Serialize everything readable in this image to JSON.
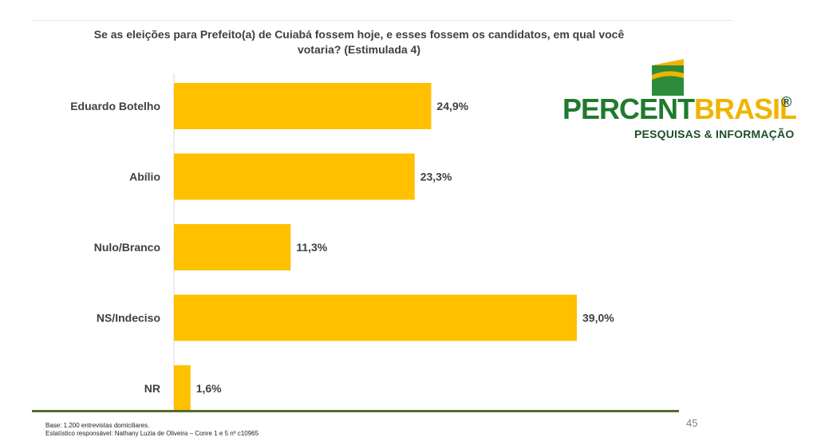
{
  "chart_data": {
    "type": "bar",
    "orientation": "horizontal",
    "title": "Se as eleições para Prefeito(a) de Cuiabá fossem hoje, e esses fossem os candidatos, em qual você votaria? (Estimulada 4)",
    "categories": [
      "Eduardo Botelho",
      "Abílio",
      "Nulo/Branco",
      "NS/Indeciso",
      "NR"
    ],
    "values": [
      24.9,
      23.3,
      11.3,
      39.0,
      1.6
    ],
    "value_labels": [
      "24,9%",
      "23,3%",
      "11,3%",
      "39,0%",
      "1,6%"
    ],
    "unit": "%",
    "bar_color": "#FFC000",
    "grid": false,
    "legend": "none"
  },
  "header": {
    "title_line1": "Se as eleições para Prefeito(a) de Cuiabá fossem hoje, e esses fossem os candidatos, em qual você",
    "title_line2": "votaria? (Estimulada 4)"
  },
  "logo": {
    "brand_part1": "PERCENT",
    "brand_part2": "BRASIL",
    "registered": "®",
    "tagline": "PESQUISAS & INFORMAÇÃO",
    "colors": {
      "green": "#1F7A2E",
      "yellow": "#F0B400",
      "dark_green": "#1F4F2A"
    }
  },
  "footer": {
    "base": "Base: 1.200 entrevistas domiciliares.",
    "statistician": "Estatístico responsável: Nathany Luzia de Oliveira – Conre 1 e 5 nº c10965",
    "page_number": "45"
  }
}
